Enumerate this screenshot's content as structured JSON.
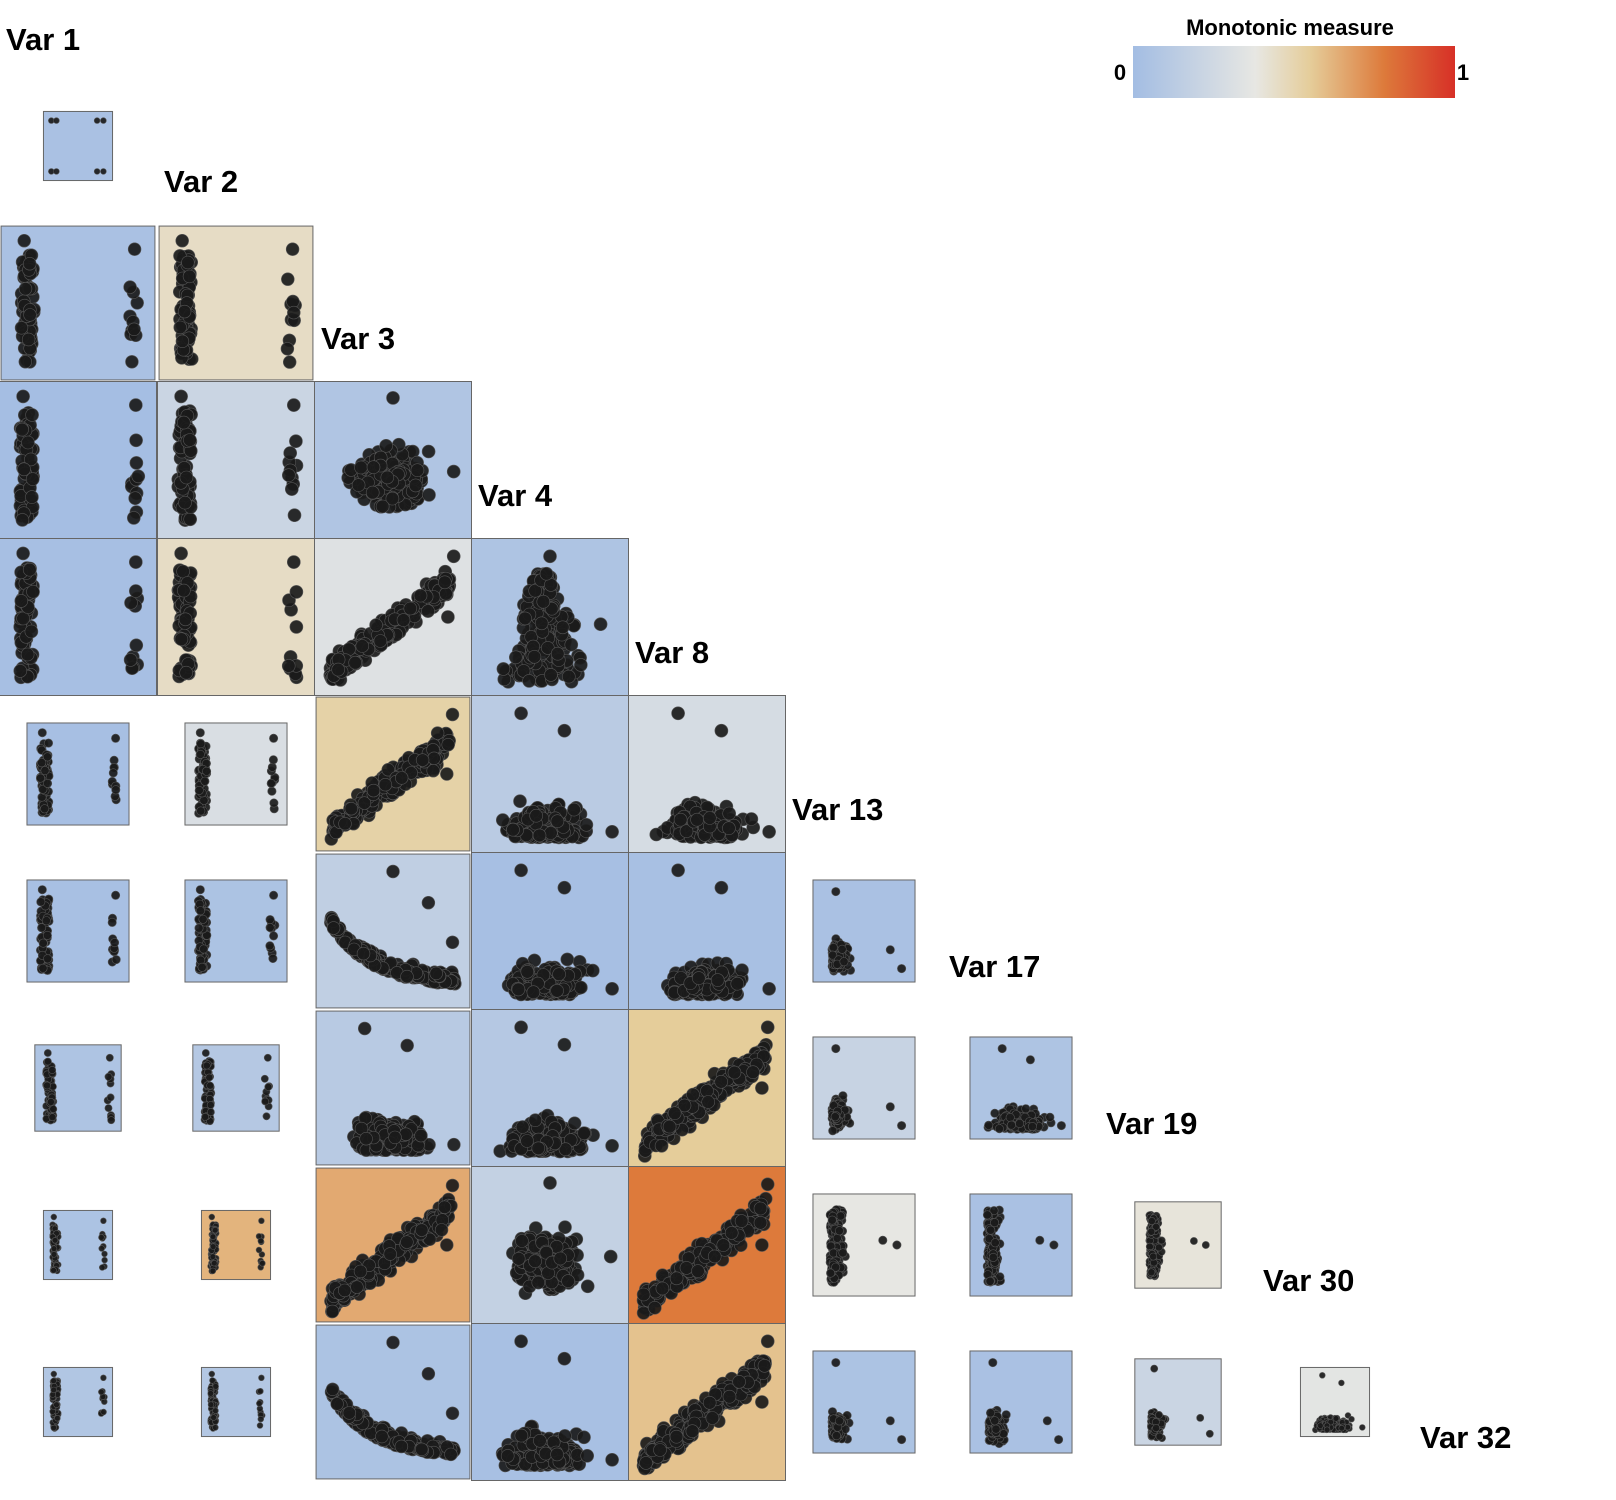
{
  "chart_data": {
    "type": "scatter-matrix",
    "title": "",
    "variables": [
      "Var 1",
      "Var 2",
      "Var 3",
      "Var 4",
      "Var 8",
      "Var 13",
      "Var 17",
      "Var 19",
      "Var 30",
      "Var 32"
    ],
    "color_scale": {
      "title": "Monotonic measure",
      "min_label": "0",
      "max_label": "1",
      "range": [
        0,
        1
      ],
      "stops": [
        {
          "value": 0.0,
          "color": "#a3bde3"
        },
        {
          "value": 0.38,
          "color": "#e7e7e3"
        },
        {
          "value": 0.55,
          "color": "#e5cd9a"
        },
        {
          "value": 0.78,
          "color": "#dd7a3b"
        },
        {
          "value": 1.0,
          "color": "#d73027"
        }
      ]
    },
    "monotonic_measure": [
      {
        "row": "Var 2",
        "values": [
          0.04
        ]
      },
      {
        "row": "Var 3",
        "values": [
          0.04,
          0.45
        ]
      },
      {
        "row": "Var 4",
        "values": [
          0.01,
          0.22,
          0.07
        ]
      },
      {
        "row": "Var 8",
        "values": [
          0.02,
          0.45,
          0.33,
          0.06
        ]
      },
      {
        "row": "Var 13",
        "values": [
          0.02,
          0.3,
          0.52,
          0.13,
          0.28
        ]
      },
      {
        "row": "Var 17",
        "values": [
          0.03,
          0.05,
          0.16,
          0.02,
          0.03,
          0.04
        ]
      },
      {
        "row": "Var 19",
        "values": [
          0.06,
          0.1,
          0.12,
          0.1,
          0.55,
          0.2,
          0.06
        ]
      },
      {
        "row": "Var 30",
        "values": [
          0.05,
          0.62,
          0.65,
          0.18,
          0.78,
          0.38,
          0.04,
          0.4
        ]
      },
      {
        "row": "Var 32",
        "values": [
          0.08,
          0.09,
          0.05,
          0.03,
          0.58,
          0.05,
          0.04,
          0.22,
          0.36
        ]
      }
    ],
    "cell_scale": [
      {
        "row": "Var 2",
        "values": [
          0.44
        ]
      },
      {
        "row": "Var 3",
        "values": [
          0.98,
          0.98
        ]
      },
      {
        "row": "Var 4",
        "values": [
          1.0,
          1.0,
          1.0
        ]
      },
      {
        "row": "Var 8",
        "values": [
          1.0,
          1.0,
          1.0,
          1.0
        ]
      },
      {
        "row": "Var 13",
        "values": [
          0.65,
          0.65,
          0.98,
          1.0,
          1.0
        ]
      },
      {
        "row": "Var 17",
        "values": [
          0.65,
          0.65,
          0.98,
          1.0,
          1.0,
          0.65
        ]
      },
      {
        "row": "Var 19",
        "values": [
          0.55,
          0.55,
          0.98,
          1.0,
          1.0,
          0.65,
          0.65
        ]
      },
      {
        "row": "Var 30",
        "values": [
          0.44,
          0.44,
          0.98,
          1.0,
          1.0,
          0.65,
          0.65,
          0.55
        ]
      },
      {
        "row": "Var 32",
        "values": [
          0.44,
          0.44,
          0.98,
          1.0,
          1.0,
          0.65,
          0.65,
          0.55,
          0.44
        ]
      }
    ],
    "cell_patterns": [
      {
        "row": "Var 2",
        "values": [
          "corners"
        ]
      },
      {
        "row": "Var 3",
        "values": [
          "binary",
          "binary"
        ]
      },
      {
        "row": "Var 4",
        "values": [
          "binary",
          "binary",
          "cloud"
        ]
      },
      {
        "row": "Var 8",
        "values": [
          "binary",
          "binary",
          "pos",
          "cone"
        ]
      },
      {
        "row": "Var 13",
        "values": [
          "binary",
          "binary",
          "pos",
          "flat",
          "flat"
        ]
      },
      {
        "row": "Var 17",
        "values": [
          "binary",
          "binary",
          "decay",
          "flat",
          "flat",
          "lcluster"
        ]
      },
      {
        "row": "Var 19",
        "values": [
          "binary",
          "binary",
          "flat",
          "flat",
          "pos",
          "lcluster",
          "flat"
        ]
      },
      {
        "row": "Var 30",
        "values": [
          "binary",
          "binary",
          "pos",
          "cloud",
          "pos",
          "vleft",
          "vleft",
          "vleft"
        ]
      },
      {
        "row": "Var 32",
        "values": [
          "binary",
          "binary",
          "decay",
          "flat",
          "pos",
          "lcluster",
          "lcluster",
          "lcluster",
          "flat"
        ]
      }
    ],
    "legend_position": "top-right",
    "grid": false,
    "points_per_panel": "approx. 50–400 (estimated)"
  }
}
